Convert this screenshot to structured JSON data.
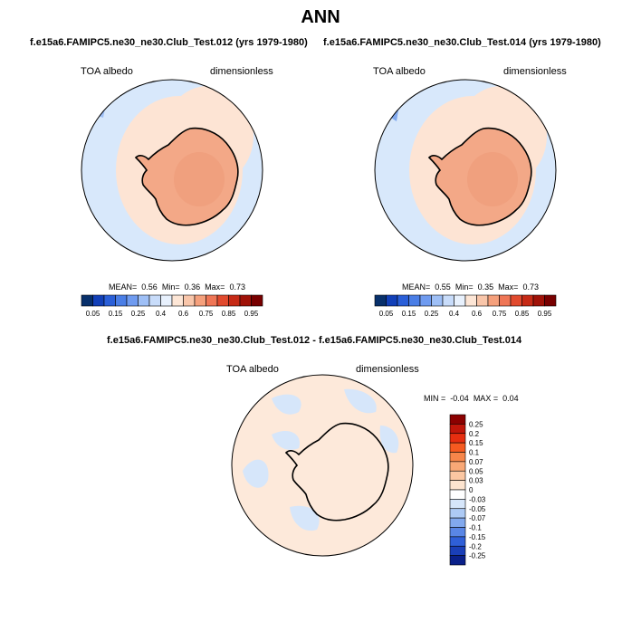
{
  "page": {
    "title": "ANN",
    "top_left_header": "f.e15a6.FAMIPC5.ne30_ne30.Club_Test.012 (yrs 1979-1980)",
    "top_right_header": "f.e15a6.FAMIPC5.ne30_ne30.Club_Test.014 (yrs 1979-1980)",
    "bottom_header": "f.e15a6.FAMIPC5.ne30_ne30.Club_Test.012 - f.e15a6.FAMIPC5.ne30_ne30.Club_Test.014"
  },
  "chart_data": [
    {
      "type": "heatmap",
      "projection": "polar-stereographic-south",
      "variable": "TOA albedo",
      "units": "dimensionless",
      "stats": {
        "mean_label": "MEAN=",
        "mean": "0.56",
        "min_label": "Min=",
        "min": "0.36",
        "max_label": "Max=",
        "max": "0.73"
      },
      "colorbar": {
        "ticks": [
          "0.05",
          "0.15",
          "0.25",
          "0.4",
          "0.6",
          "0.75",
          "0.85",
          "0.95"
        ],
        "colors": [
          "#08306b",
          "#1240b8",
          "#2a5fd8",
          "#4a7ee6",
          "#6f9bf0",
          "#9ebff6",
          "#c8dcfa",
          "#e8f1fd",
          "#fde6d6",
          "#f9c6aa",
          "#f5a07c",
          "#ef7656",
          "#e14a2e",
          "#c62a16",
          "#a01208",
          "#780000"
        ]
      },
      "regions": {
        "ocean": 0.4,
        "sea_ice_zone": 0.55,
        "antarctica": 0.7
      }
    },
    {
      "type": "heatmap",
      "projection": "polar-stereographic-south",
      "variable": "TOA albedo",
      "units": "dimensionless",
      "stats": {
        "mean_label": "MEAN=",
        "mean": "0.55",
        "min_label": "Min=",
        "min": "0.35",
        "max_label": "Max=",
        "max": "0.73"
      },
      "colorbar": {
        "ticks": [
          "0.05",
          "0.15",
          "0.25",
          "0.4",
          "0.6",
          "0.75",
          "0.85",
          "0.95"
        ],
        "colors": [
          "#08306b",
          "#1240b8",
          "#2a5fd8",
          "#4a7ee6",
          "#6f9bf0",
          "#9ebff6",
          "#c8dcfa",
          "#e8f1fd",
          "#fde6d6",
          "#f9c6aa",
          "#f5a07c",
          "#ef7656",
          "#e14a2e",
          "#c62a16",
          "#a01208",
          "#780000"
        ]
      },
      "regions": {
        "ocean": 0.4,
        "sea_ice_zone": 0.55,
        "antarctica": 0.7
      }
    },
    {
      "type": "heatmap",
      "projection": "polar-stereographic-south",
      "variable": "TOA albedo",
      "units": "dimensionless",
      "stats": {
        "min_label": "MIN =",
        "min": "-0.04",
        "max_label": "MAX =",
        "max": "0.04"
      },
      "colorbar": {
        "orientation": "vertical",
        "ticks": [
          "0.25",
          "0.2",
          "0.15",
          "0.1",
          "0.07",
          "0.05",
          "0.03",
          "0",
          "-0.03",
          "-0.05",
          "-0.07",
          "-0.1",
          "-0.15",
          "-0.2",
          "-0.25"
        ],
        "colors": [
          "#8b0000",
          "#c0160a",
          "#e62e10",
          "#f55a20",
          "#f7864a",
          "#f9a876",
          "#fbc7a2",
          "#fde4cf",
          "#ffffff",
          "#d6e6fa",
          "#adcaf5",
          "#82a9ee",
          "#5986e6",
          "#2f5fd8",
          "#1a3fb8",
          "#0a208a"
        ]
      },
      "regions": {
        "dominant": 0.01,
        "patches": -0.01
      }
    }
  ]
}
